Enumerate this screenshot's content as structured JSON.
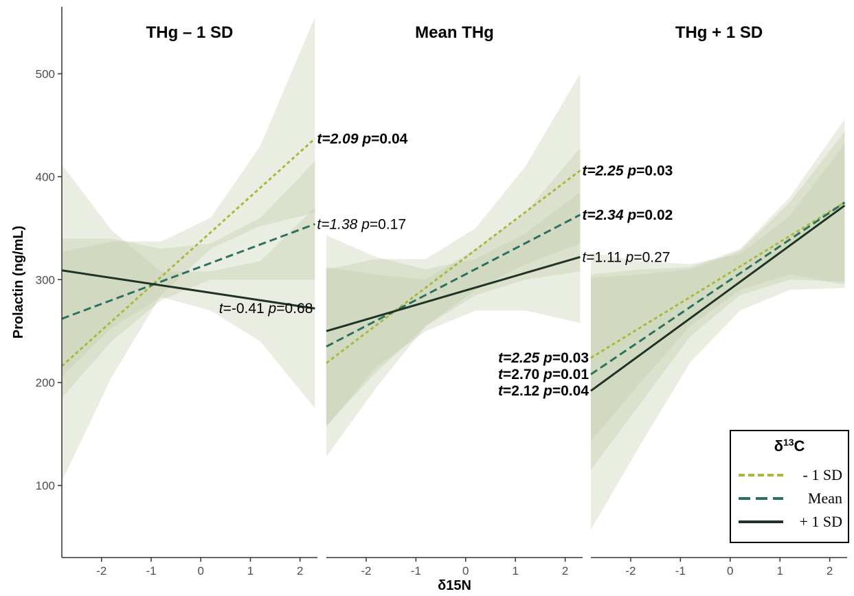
{
  "chart_data": {
    "type": "line",
    "xlabel": "δ15N",
    "ylabel": "Prolactin (ng/mL)",
    "xlim": [
      -2.8,
      2.35
    ],
    "ylim": [
      30,
      565
    ],
    "x_ticks": [
      "-2",
      "-1",
      "0",
      "1",
      "2"
    ],
    "x_tick_values": [
      -2,
      -1,
      0,
      1,
      2
    ],
    "y_ticks": [
      "100",
      "200",
      "300",
      "400",
      "500"
    ],
    "y_tick_values": [
      100,
      200,
      300,
      400,
      500
    ],
    "legend": {
      "title_base": "δ",
      "title_sup": "13",
      "title_tail": "C",
      "placement": "bottom-right",
      "entries": [
        {
          "label": "- 1 SD",
          "color": "#a8b93d",
          "dash": "short"
        },
        {
          "label": "Mean",
          "color": "#2c7160",
          "dash": "long"
        },
        {
          "label": "+ 1 SD",
          "color": "#1e3326",
          "dash": "solid"
        }
      ]
    },
    "band_fill": "#bfc9a6",
    "panels": [
      {
        "title": "THg – 1 SD",
        "series": [
          {
            "name": "- 1 SD",
            "x": [
              -2.8,
              2.3
            ],
            "y": [
              216,
              437
            ],
            "band_x": [
              -2.8,
              -1.8,
              -0.8,
              0.2,
              1.2,
              2.3
            ],
            "band_lo": [
              104,
              205,
              285,
              330,
              352,
              365
            ],
            "band_hi": [
              327,
              337,
              337,
              360,
              430,
              555
            ]
          },
          {
            "name": "Mean",
            "x": [
              -2.8,
              2.3
            ],
            "y": [
              262,
              354
            ],
            "band_x": [
              -2.8,
              -1.8,
              -0.8,
              0.2,
              1.2,
              2.3
            ],
            "band_lo": [
              185,
              240,
              280,
              300,
              300,
              300
            ],
            "band_hi": [
              340,
              340,
              330,
              335,
              360,
              415
            ]
          },
          {
            "name": "+ 1 SD",
            "x": [
              -2.8,
              2.3
            ],
            "y": [
              309,
              272
            ],
            "band_x": [
              -2.8,
              -1.8,
              -0.8,
              0.2,
              1.2,
              2.3
            ],
            "band_lo": [
              206,
              253,
              283,
              270,
              240,
              175
            ],
            "band_hi": [
              412,
              348,
              308,
              308,
              318,
              370
            ]
          }
        ],
        "annotations": [
          {
            "t_text": "t=2.09",
            "p_label": "p",
            "p_value": "=0.04",
            "t_italic": true,
            "bold": true,
            "x": 2.3,
            "y": 437,
            "anchor": "start"
          },
          {
            "t_text": "t=1.38",
            "p_label": "p",
            "p_value": "=0.17",
            "t_italic": true,
            "bold": false,
            "x": 2.3,
            "y": 354,
            "anchor": "start"
          },
          {
            "t_text": "t=-0.41",
            "p_label": "p",
            "p_value": "=0.68",
            "t_italic": false,
            "bold": false,
            "x": 2.3,
            "y": 272,
            "anchor": "end"
          }
        ]
      },
      {
        "title": "Mean THg",
        "series": [
          {
            "name": "- 1 SD",
            "x": [
              -2.8,
              2.3
            ],
            "y": [
              219,
              406
            ],
            "band_x": [
              -2.8,
              -1.8,
              -0.8,
              0.2,
              1.2,
              2.3
            ],
            "band_lo": [
              128,
              195,
              255,
              290,
              315,
              335
            ],
            "band_hi": [
              310,
              320,
              320,
              350,
              410,
              500
            ]
          },
          {
            "name": "Mean",
            "x": [
              -2.8,
              2.3
            ],
            "y": [
              235,
              363
            ],
            "band_x": [
              -2.8,
              -1.8,
              -0.8,
              0.2,
              1.2,
              2.3
            ],
            "band_lo": [
              158,
              210,
              255,
              285,
              300,
              308
            ],
            "band_hi": [
              312,
              305,
              300,
              330,
              365,
              428
            ]
          },
          {
            "name": "+ 1 SD",
            "x": [
              -2.8,
              2.3
            ],
            "y": [
              250,
              322
            ],
            "band_x": [
              -2.8,
              -1.8,
              -0.8,
              0.2,
              1.2,
              2.3
            ],
            "band_lo": [
              157,
              215,
              250,
              270,
              270,
              258
            ],
            "band_hi": [
              343,
              322,
              310,
              320,
              345,
              385
            ]
          }
        ],
        "annotations": [
          {
            "t_text": "t=2.25",
            "p_label": "p",
            "p_value": "=0.03",
            "t_italic": true,
            "bold": true,
            "x": 2.3,
            "y": 406,
            "anchor": "start"
          },
          {
            "t_text": "t=2.34",
            "p_label": "p",
            "p_value": "=0.02",
            "t_italic": true,
            "bold": true,
            "x": 2.3,
            "y": 363,
            "anchor": "start"
          },
          {
            "t_text": "t=1.11",
            "p_label": "p",
            "p_value": "=0.27",
            "t_italic": false,
            "bold": false,
            "x": 2.3,
            "y": 322,
            "anchor": "start"
          }
        ]
      },
      {
        "title": "THg + 1 SD",
        "series": [
          {
            "name": "- 1 SD",
            "x": [
              -2.8,
              2.3
            ],
            "y": [
              224,
              375
            ],
            "band_x": [
              -2.8,
              -1.8,
              -0.8,
              0.2,
              1.2,
              2.3
            ],
            "band_lo": [
              143,
              200,
              255,
              290,
              305,
              295
            ],
            "band_hi": [
              305,
              310,
              312,
              330,
              380,
              456
            ]
          },
          {
            "name": "Mean",
            "x": [
              -2.8,
              2.3
            ],
            "y": [
              208,
              375
            ],
            "band_x": [
              -2.8,
              -1.8,
              -0.8,
              0.2,
              1.2,
              2.3
            ],
            "band_lo": [
              115,
              180,
              245,
              285,
              300,
              298
            ],
            "band_hi": [
              302,
              305,
              310,
              328,
              375,
              444
            ]
          },
          {
            "name": "+ 1 SD",
            "x": [
              -2.8,
              2.3
            ],
            "y": [
              192,
              372
            ],
            "band_x": [
              -2.8,
              -1.8,
              -0.8,
              0.2,
              1.2,
              2.3
            ],
            "band_lo": [
              57,
              140,
              220,
              270,
              290,
              292
            ],
            "band_hi": [
              326,
              318,
              315,
              325,
              362,
              432
            ]
          }
        ],
        "annotations": [
          {
            "t_text": "t=2.25",
            "p_label": "p",
            "p_value": "=0.03",
            "t_italic": true,
            "bold": true,
            "x": -2.8,
            "y": 224,
            "anchor": "end"
          },
          {
            "t_text": "t=2.70",
            "p_label": "p",
            "p_value": "=0.01",
            "t_italic": false,
            "bold": true,
            "x": -2.8,
            "y": 208,
            "anchor": "end"
          },
          {
            "t_text": "t=2.12",
            "p_label": "p",
            "p_value": "=0.04",
            "t_italic": false,
            "bold": true,
            "x": -2.8,
            "y": 192,
            "anchor": "end"
          }
        ]
      }
    ]
  }
}
